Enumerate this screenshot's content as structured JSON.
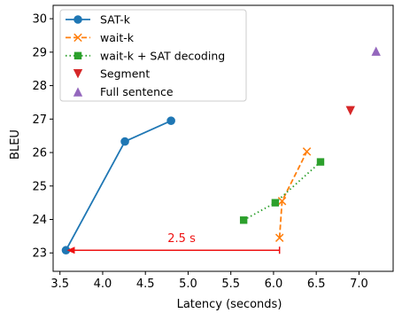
{
  "chart_data": {
    "type": "line",
    "xlabel": "Latency (seconds)",
    "ylabel": "BLEU",
    "xlim": [
      3.42,
      7.4
    ],
    "ylim": [
      22.45,
      30.4
    ],
    "xticks": [
      "3.5",
      "4.0",
      "4.5",
      "5.0",
      "5.5",
      "6.0",
      "6.5",
      "7.0"
    ],
    "yticks": [
      "23",
      "24",
      "25",
      "26",
      "27",
      "28",
      "29",
      "30"
    ],
    "legend_position": "top-left",
    "series": [
      {
        "name": "SAT-k",
        "color": "#1f77b4",
        "line": "solid",
        "marker": "circle",
        "points": [
          [
            3.57,
            23.08
          ],
          [
            4.26,
            26.33
          ],
          [
            4.8,
            26.95
          ]
        ]
      },
      {
        "name": "wait-k",
        "color": "#ff7f0e",
        "line": "dashed",
        "marker": "x",
        "points": [
          [
            6.07,
            23.45
          ],
          [
            6.1,
            24.55
          ],
          [
            6.39,
            26.03
          ]
        ]
      },
      {
        "name": "wait-k + SAT decoding",
        "color": "#2ca02c",
        "line": "dotted",
        "marker": "square",
        "points": [
          [
            5.65,
            23.98
          ],
          [
            6.02,
            24.5
          ],
          [
            6.55,
            25.72
          ]
        ]
      },
      {
        "name": "Segment",
        "color": "#d62728",
        "line": "none",
        "marker": "triangle-down",
        "points": [
          [
            6.9,
            27.25
          ]
        ]
      },
      {
        "name": "Full sentence",
        "color": "#9467bd",
        "line": "none",
        "marker": "triangle-up",
        "points": [
          [
            7.2,
            29.03
          ]
        ]
      }
    ],
    "annotation": {
      "text": "2.5 s",
      "color": "#ee1111",
      "from": [
        6.07,
        23.08
      ],
      "to": [
        3.57,
        23.08
      ]
    }
  }
}
